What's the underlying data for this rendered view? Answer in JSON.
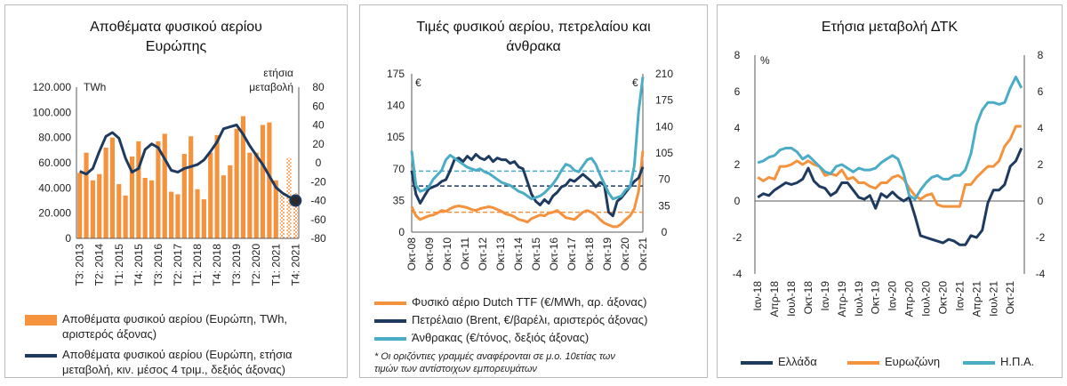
{
  "colors": {
    "orange": "#f5923e",
    "navy": "#1f3a5f",
    "teal": "#4bacc6",
    "grid": "#d9d9d9",
    "axis": "#595959"
  },
  "panels": {
    "p1": {
      "title_l1": "Αποθέματα φυσικού αερίου",
      "title_l2": "Ευρώπης",
      "unit_left": "TWh",
      "unit_right_l1": "ετήσια",
      "unit_right_l2": "μεταβολή",
      "legend_bar_l1": "Αποθέματα φυσικού αερίου (Ευρώπη, TWh,",
      "legend_bar_l2": "αριστερός άξονας)",
      "legend_line_l1": "Αποθέματα φυσικού αερίου (Ευρώπη, ετήσια",
      "legend_line_l2": "μεταβολή, κιν. μέσος 4 τριμ., δεξιός άξονας)"
    },
    "p2": {
      "title_l1": "Τιμές φυσικού αερίου, πετρελαίου και",
      "title_l2": "άνθρακα",
      "unit_left": "€",
      "unit_right": "€",
      "legend_gas": "Φυσικό αέριο Dutch TTF (€/MWh, αρ. άξονας)",
      "legend_oil": "Πετρέλαιο (Brent, €/βαρέλι, αριστερός άξονας)",
      "legend_coal": "Άνθρακας (€/τόνος, δεξιός άξονας)",
      "note_l1": "* Οι οριζόντιες γραμμές αναφέρονται σε μ.ο. 10ετίας των",
      "note_l2": "τιμών των αντίστοιχων εμπορευμάτων"
    },
    "p3": {
      "title": "Ετήσια μεταβολή ΔΤΚ",
      "unit": "%",
      "legend_gr": "Ελλάδα",
      "legend_ez": "Ευρωζώνη",
      "legend_us": "Η.Π.Α."
    }
  },
  "chart_data": [
    {
      "type": "bar",
      "title": "Αποθέματα φυσικού αερίου Ευρώπης",
      "y_ticks": [
        "0",
        "20.000",
        "40.000",
        "60.000",
        "80.000",
        "100.000",
        "120.000"
      ],
      "ylim": [
        0,
        120000
      ],
      "y2_ticks": [
        "-80",
        "-60",
        "-40",
        "-20",
        "0",
        "20",
        "40",
        "60",
        "80"
      ],
      "y2lim": [
        -80,
        80
      ],
      "x_labels": [
        "Τ3: 2013",
        "Τ2: 2014",
        "Τ1: 2015",
        "Τ4: 2015",
        "Τ3: 2016",
        "Τ2: 2017",
        "Τ1: 2018",
        "Τ4: 2018",
        "Τ3: 2019",
        "Τ2: 2020",
        "Τ1: 2021",
        "Τ4: 2021"
      ],
      "bars": [
        52000,
        68000,
        46000,
        51000,
        72000,
        80000,
        43000,
        34000,
        65000,
        77000,
        48000,
        46000,
        77000,
        83000,
        37000,
        35000,
        67000,
        81000,
        39000,
        31000,
        68000,
        82000,
        50000,
        58000,
        87000,
        97000,
        68000,
        68000,
        90000,
        92000,
        46000,
        36000,
        64000,
        36000
      ],
      "hatched_from_index": 31,
      "line": [
        -9,
        -12,
        -6,
        12,
        28,
        32,
        26,
        5,
        -10,
        -6,
        14,
        20,
        16,
        4,
        -8,
        -10,
        -6,
        -4,
        -2,
        3,
        12,
        22,
        36,
        38,
        40,
        30,
        18,
        8,
        -2,
        -14,
        -26,
        -32,
        -36,
        -40
      ]
    },
    {
      "type": "line",
      "title": "Τιμές φυσικού αερίου, πετρελαίου και άνθρακα",
      "y_ticks": [
        "0",
        "35",
        "70",
        "105",
        "140",
        "175"
      ],
      "ylim": [
        0,
        175
      ],
      "y2_ticks": [
        "0",
        "35",
        "70",
        "105",
        "140",
        "175",
        "210"
      ],
      "y2lim": [
        0,
        210
      ],
      "x_labels": [
        "Οκτ-08",
        "Οκτ-09",
        "Οκτ-10",
        "Οκτ-11",
        "Οκτ-12",
        "Οκτ-13",
        "Οκτ-14",
        "Οκτ-15",
        "Οκτ-16",
        "Οκτ-17",
        "Οκτ-18",
        "Οκτ-19",
        "Οκτ-20",
        "Οκτ-21"
      ],
      "series": [
        {
          "name": "Φυσικό αέριο Dutch TTF",
          "axis": "left",
          "color": "#f5923e",
          "avg": 22,
          "values": [
            28,
            18,
            14,
            16,
            18,
            19,
            21,
            24,
            23,
            26,
            28,
            29,
            28,
            27,
            25,
            24,
            26,
            27,
            28,
            27,
            25,
            23,
            20,
            19,
            17,
            14,
            13,
            11,
            15,
            17,
            19,
            18,
            21,
            22,
            24,
            20,
            16,
            15,
            14,
            18,
            22,
            24,
            22,
            19,
            14,
            10,
            8,
            6,
            6,
            9,
            14,
            18,
            26,
            45,
            90
          ]
        },
        {
          "name": "Πετρέλαιο Brent",
          "axis": "left",
          "color": "#1f3a5f",
          "avg": 51,
          "values": [
            68,
            42,
            32,
            40,
            48,
            50,
            52,
            56,
            58,
            68,
            80,
            82,
            78,
            84,
            80,
            86,
            82,
            80,
            84,
            78,
            82,
            80,
            80,
            76,
            78,
            72,
            70,
            56,
            42,
            34,
            30,
            36,
            32,
            40,
            44,
            50,
            52,
            58,
            56,
            60,
            64,
            60,
            56,
            50,
            55,
            52,
            22,
            18,
            34,
            38,
            44,
            50,
            56,
            60,
            72
          ]
        },
        {
          "name": "Άνθρακας",
          "axis": "right",
          "color": "#4bacc6",
          "avg": 81,
          "values": [
            108,
            62,
            54,
            56,
            60,
            70,
            76,
            82,
            96,
            102,
            98,
            94,
            90,
            86,
            84,
            82,
            84,
            80,
            78,
            74,
            70,
            66,
            64,
            62,
            58,
            54,
            52,
            48,
            44,
            46,
            48,
            52,
            58,
            64,
            72,
            82,
            90,
            88,
            82,
            80,
            88,
            96,
            98,
            90,
            76,
            64,
            52,
            44,
            46,
            48,
            56,
            60,
            88,
            160,
            206
          ]
        }
      ]
    },
    {
      "type": "line",
      "title": "Ετήσια μεταβολή ΔΤΚ",
      "y_ticks": [
        "-4",
        "-2",
        "0",
        "2",
        "4",
        "6",
        "8"
      ],
      "ylim": [
        -4,
        8
      ],
      "x_labels": [
        "Ιαν-18",
        "Απρ-18",
        "Ιουλ-18",
        "Οκτ-18",
        "Ιαν-19",
        "Απρ-19",
        "Ιουλ-19",
        "Οκτ-19",
        "Ιαν-20",
        "Απρ-20",
        "Ιουλ-20",
        "Οκτ-20",
        "Ιαν-21",
        "Απρ-21",
        "Ιουλ-21",
        "Οκτ-21"
      ],
      "series": [
        {
          "name": "Ελλάδα",
          "color": "#1f3a5f",
          "values": [
            0.2,
            0.4,
            0.3,
            0.6,
            0.8,
            1.0,
            0.9,
            1.0,
            1.2,
            1.8,
            1.1,
            0.8,
            0.7,
            0.3,
            0.5,
            1.0,
            1.0,
            0.6,
            0.2,
            0.1,
            0.3,
            -0.4,
            0.4,
            0.2,
            0.5,
            0.2,
            0.0,
            0.2,
            -0.8,
            -1.9,
            -2.0,
            -2.1,
            -2.2,
            -2.3,
            -2.1,
            -2.2,
            -2.4,
            -2.4,
            -1.9,
            -2.0,
            -1.6,
            -0.1,
            0.6,
            0.6,
            0.9,
            1.9,
            2.2,
            2.9
          ]
        },
        {
          "name": "Ευρωζώνη",
          "color": "#f5923e",
          "values": [
            1.3,
            1.1,
            1.3,
            1.2,
            1.9,
            1.9,
            2.0,
            2.2,
            2.0,
            2.2,
            2.0,
            1.9,
            1.4,
            1.5,
            1.4,
            1.7,
            1.2,
            1.3,
            1.0,
            1.0,
            0.8,
            0.7,
            1.0,
            1.0,
            1.3,
            1.4,
            1.2,
            0.7,
            0.3,
            0.1,
            0.3,
            0.4,
            -0.2,
            -0.3,
            -0.3,
            -0.3,
            -0.3,
            0.9,
            0.9,
            1.3,
            1.6,
            1.9,
            1.9,
            2.2,
            3.0,
            3.4,
            4.1,
            4.1
          ]
        },
        {
          "name": "Η.Π.Α.",
          "color": "#4bacc6",
          "values": [
            2.1,
            2.2,
            2.4,
            2.5,
            2.8,
            2.9,
            2.9,
            2.7,
            2.3,
            2.5,
            2.2,
            1.9,
            1.6,
            1.5,
            1.9,
            2.0,
            1.8,
            1.6,
            1.8,
            1.7,
            1.7,
            1.8,
            2.1,
            2.3,
            2.5,
            2.3,
            1.5,
            0.3,
            0.1,
            0.6,
            1.0,
            1.3,
            1.4,
            1.2,
            1.2,
            1.4,
            1.4,
            1.7,
            2.6,
            4.2,
            5.0,
            5.4,
            5.4,
            5.3,
            5.4,
            6.2,
            6.8,
            6.2
          ]
        }
      ]
    }
  ]
}
